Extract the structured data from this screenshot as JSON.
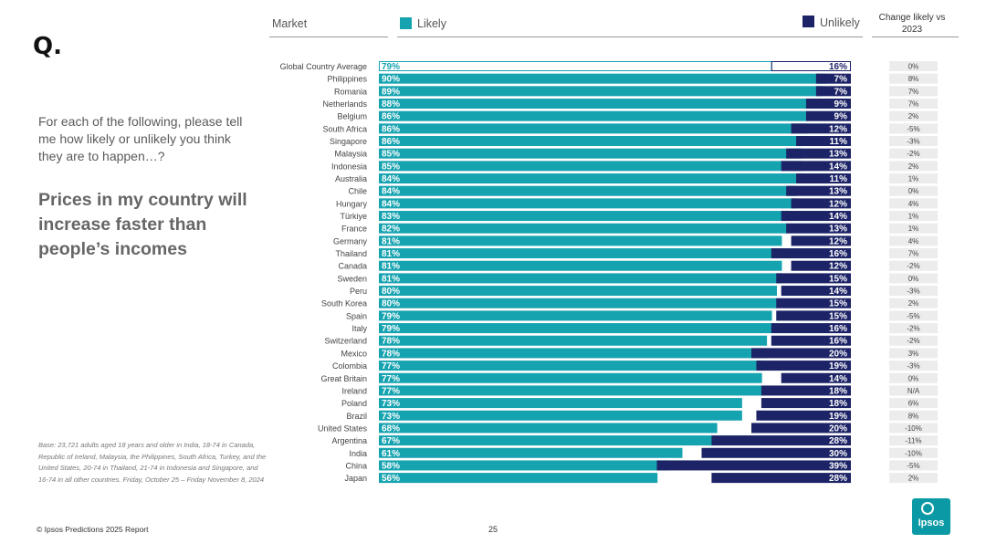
{
  "q_label": "Q.",
  "question": "For each of the following, please tell me how likely or unlikely you think they are to happen…?",
  "statement": "Prices in my country will increase faster than people’s incomes",
  "base_note": "Base: 23,721 adults aged 18 years and older in India, 18-74 in Canada, Republic of Ireland, Malaysia, the Philippines, South Africa, Turkey, and the United States, 20-74 in Thailand, 21-74 in Indonesia and Singapore, and 16-74 in all other countries. Friday, October 25 – Friday November 8, 2024",
  "footer": {
    "copyright": "© Ipsos Predictions 2025 Report",
    "page": "25"
  },
  "logo_text": "Ipsos",
  "header": {
    "market": "Market",
    "likely": "Likely",
    "unlikely": "Unlikely",
    "change": "Change likely vs 2023"
  },
  "colors": {
    "likely": "#16a3b0",
    "unlikely": "#1c2366",
    "change_bg": "#ececec",
    "outline": "#16a3b0"
  },
  "chart_data": {
    "type": "bar",
    "title": "Prices in my country will increase faster than people’s incomes",
    "series_names": [
      "Likely",
      "Unlikely",
      "Change likely vs 2023"
    ],
    "categories": [
      "Global Country Average",
      "Philippines",
      "Romania",
      "Netherlands",
      "Belgium",
      "South Africa",
      "Singapore",
      "Malaysia",
      "Indonesia",
      "Australia",
      "Chile",
      "Hungary",
      "Türkiye",
      "France",
      "Germany",
      "Thailand",
      "Canada",
      "Sweden",
      "Peru",
      "South Korea",
      "Spain",
      "Italy",
      "Switzerland",
      "Mexico",
      "Colombia",
      "Great Britain",
      "Ireland",
      "Poland",
      "Brazil",
      "United States",
      "Argentina",
      "India",
      "China",
      "Japan"
    ],
    "likely": [
      79,
      90,
      89,
      88,
      86,
      86,
      86,
      85,
      85,
      84,
      84,
      84,
      83,
      82,
      81,
      81,
      81,
      81,
      80,
      80,
      79,
      79,
      78,
      78,
      77,
      77,
      77,
      73,
      73,
      68,
      67,
      61,
      58,
      56
    ],
    "unlikely": [
      16,
      7,
      7,
      9,
      9,
      12,
      11,
      13,
      14,
      11,
      13,
      12,
      14,
      13,
      12,
      16,
      12,
      15,
      14,
      15,
      15,
      16,
      16,
      20,
      19,
      14,
      18,
      18,
      19,
      20,
      28,
      30,
      39,
      28
    ],
    "likely_labels": [
      "79%",
      "90%",
      "89%",
      "88%",
      "86%",
      "86%",
      "86%",
      "85%",
      "85%",
      "84%",
      "84%",
      "84%",
      "83%",
      "82%",
      "81%",
      "81%",
      "81%",
      "81%",
      "80%",
      "80%",
      "79%",
      "79%",
      "78%",
      "78%",
      "77%",
      "77%",
      "77%",
      "73%",
      "73%",
      "68%",
      "67%",
      "61%",
      "58%",
      "56%"
    ],
    "unlikely_labels": [
      "16%",
      "7%",
      "7%",
      "9%",
      "9%",
      "12%",
      "11%",
      "13%",
      "14%",
      "11%",
      "13%",
      "12%",
      "14%",
      "13%",
      "12%",
      "16%",
      "12%",
      "15%",
      "14%",
      "15%",
      "15%",
      "16%",
      "16%",
      "20%",
      "19%",
      "14%",
      "18%",
      "18%",
      "19%",
      "20%",
      "28%",
      "30%",
      "39%",
      "28%"
    ],
    "change": [
      "0%",
      "8%",
      "7%",
      "7%",
      "2%",
      "-5%",
      "-3%",
      "-2%",
      "2%",
      "1%",
      "0%",
      "4%",
      "1%",
      "1%",
      "4%",
      "7%",
      "-2%",
      "0%",
      "-3%",
      "2%",
      "-5%",
      "-2%",
      "-2%",
      "3%",
      "-3%",
      "0%",
      "N/A",
      "6%",
      "8%",
      "-10%",
      "-11%",
      "-10%",
      "-5%",
      "2%"
    ],
    "xlim": [
      0,
      100
    ]
  }
}
